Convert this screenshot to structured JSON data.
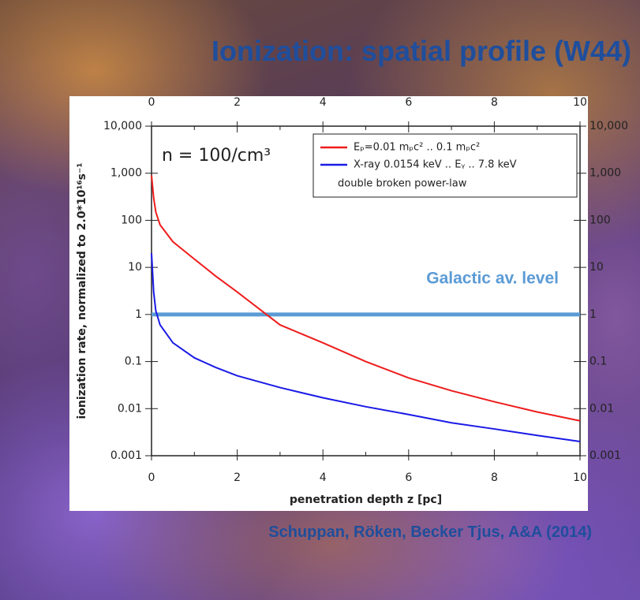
{
  "title": "Ionization: spatial profile (W44)",
  "citation": "Schuppan, Röken, Becker Tjus, A&A (2014)",
  "chart_data": {
    "type": "line",
    "x_label": "penetration depth z [pc]",
    "y_label": "ionization rate, normalized to 2.0*10¹⁶s⁻¹",
    "annotation": "n = 100/cm³",
    "legend_note": "double broken power-law",
    "x": [
      0,
      0.05,
      0.1,
      0.2,
      0.5,
      1,
      1.5,
      2,
      3,
      4,
      5,
      6,
      7,
      8,
      9,
      10
    ],
    "series": [
      {
        "name": "Eₚ=0.01 mₚc² .. 0.1 mₚc²",
        "color": "#ee1c1c",
        "values": [
          900,
          300,
          150,
          80,
          35,
          15,
          6.5,
          3,
          0.6,
          0.25,
          0.1,
          0.045,
          0.024,
          0.014,
          0.0085,
          0.0055
        ]
      },
      {
        "name": "X-ray 0.0154 keV .. Eᵧ .. 7.8 keV",
        "color": "#1a1ae6",
        "values": [
          20,
          3,
          1.2,
          0.6,
          0.25,
          0.12,
          0.075,
          0.05,
          0.028,
          0.017,
          0.011,
          0.0075,
          0.005,
          0.0037,
          0.0027,
          0.002
        ]
      }
    ],
    "reference_line": {
      "value": 1,
      "label": "Galactic av. level",
      "color": "#5b9bd5"
    },
    "xlim": [
      0,
      10
    ],
    "xticks": [
      0,
      2,
      4,
      6,
      8,
      10
    ],
    "ylim": [
      0.001,
      10000
    ],
    "log_y": true,
    "yticks": [
      {
        "value": 10000,
        "label": "10,000"
      },
      {
        "value": 1000,
        "label": "1,000"
      },
      100,
      10,
      1,
      0.1,
      0.01,
      0.001
    ]
  }
}
